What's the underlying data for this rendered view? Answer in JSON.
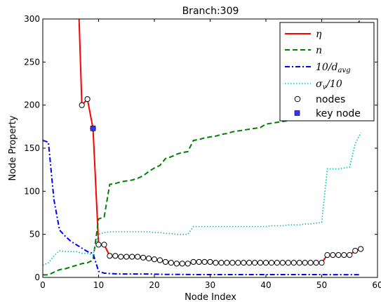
{
  "chart_data": {
    "type": "line",
    "title": "Branch:309",
    "xlabel": "Node Index",
    "ylabel": "Node Property",
    "xlim": [
      0,
      60
    ],
    "ylim": [
      0,
      300
    ],
    "xticks": [
      "0",
      "10",
      "20",
      "30",
      "40",
      "50",
      "60"
    ],
    "yticks": [
      "0",
      "50",
      "100",
      "150",
      "200",
      "250",
      "300"
    ],
    "grid": false,
    "legend_position": "top-right",
    "series": [
      {
        "name": "η",
        "style": "solid",
        "color": "#ff0000",
        "x": [
          7,
          8,
          9,
          10,
          11,
          12,
          13,
          14,
          15,
          16,
          17,
          18,
          19,
          20,
          21,
          22,
          23,
          24,
          25,
          26,
          27,
          28,
          29,
          30,
          31,
          32,
          33,
          34,
          35,
          36,
          37,
          38,
          39,
          40,
          41,
          42,
          43,
          44,
          45,
          46,
          47,
          48,
          49,
          50,
          51,
          52,
          53,
          54,
          55,
          56,
          57
        ],
        "y": [
          200,
          207,
          173,
          38,
          38,
          25,
          25,
          24,
          24,
          24,
          24,
          23,
          22,
          21,
          20,
          18,
          17,
          16,
          16,
          16,
          18,
          18,
          18,
          18,
          17,
          17,
          17,
          17,
          17,
          17,
          17,
          17,
          17,
          17,
          17,
          17,
          17,
          17,
          17,
          17,
          17,
          17,
          17,
          17,
          26,
          26,
          26,
          26,
          26,
          31,
          33
        ],
        "lead_in": {
          "x": [
            6.5,
            7
          ],
          "y": [
            300,
            200
          ]
        }
      },
      {
        "name": "n",
        "style": "dashed",
        "color": "#008000",
        "x": [
          0,
          1,
          2,
          3,
          4,
          5,
          6,
          7,
          8,
          9,
          10,
          11,
          12,
          13,
          14,
          15,
          16,
          17,
          18,
          19,
          20,
          21,
          22,
          23,
          24,
          25,
          26,
          27,
          28,
          29,
          30,
          31,
          32,
          33,
          34,
          35,
          36,
          37,
          38,
          39,
          40,
          41,
          42,
          43,
          44,
          45,
          46,
          47,
          48,
          49,
          50,
          51,
          52,
          53,
          54,
          55,
          56,
          57
        ],
        "y": [
          3,
          3,
          6,
          9,
          10,
          12,
          14,
          16,
          17,
          20,
          68,
          70,
          108,
          109,
          111,
          112,
          113,
          115,
          118,
          123,
          127,
          130,
          138,
          140,
          143,
          145,
          146,
          159,
          160,
          162,
          163,
          164,
          166,
          167,
          169,
          170,
          171,
          172,
          173,
          174,
          178,
          179,
          180,
          181,
          182,
          183,
          183,
          184,
          185,
          185,
          186,
          200,
          215,
          235,
          255,
          275,
          290,
          300
        ]
      },
      {
        "name": "10/d_avg",
        "style": "dashdot",
        "color": "#0000ff",
        "x": [
          0,
          1,
          2,
          3,
          4,
          5,
          6,
          7,
          8,
          9,
          10,
          11,
          12,
          13,
          14,
          15,
          16,
          17,
          18,
          19,
          20,
          21,
          22,
          23,
          24,
          25,
          26,
          27,
          28,
          29,
          30,
          31,
          32,
          33,
          34,
          35,
          36,
          37,
          38,
          39,
          40,
          41,
          42,
          43,
          44,
          45,
          46,
          47,
          48,
          49,
          50,
          51,
          52,
          53,
          54,
          55,
          56,
          57
        ],
        "y": [
          159,
          157,
          90,
          55,
          48,
          42,
          38,
          34,
          30,
          28,
          7,
          5,
          4.5,
          4.2,
          4,
          4,
          4,
          4,
          4,
          4,
          3.8,
          3.6,
          3.5,
          3.5,
          3.5,
          3.4,
          3.4,
          3.3,
          3.3,
          3.3,
          3.3,
          3.3,
          3.3,
          3.3,
          3.3,
          3.3,
          3.3,
          3.3,
          3.3,
          3.3,
          3.3,
          3.3,
          3.3,
          3.3,
          3.3,
          3.3,
          3.3,
          3.3,
          3.3,
          3.3,
          3.3,
          3.2,
          3.2,
          3.2,
          3.2,
          3.2,
          3.2,
          3.2
        ]
      },
      {
        "name": "σ_v/10",
        "style": "dotted",
        "color": "#00bfbf",
        "x": [
          0,
          1,
          2,
          3,
          4,
          5,
          6,
          7,
          8,
          9,
          10,
          11,
          12,
          13,
          14,
          15,
          16,
          17,
          18,
          19,
          20,
          21,
          22,
          23,
          24,
          25,
          26,
          27,
          28,
          29,
          30,
          31,
          32,
          33,
          34,
          35,
          36,
          37,
          38,
          39,
          40,
          41,
          42,
          43,
          44,
          45,
          46,
          47,
          48,
          49,
          50,
          51,
          52,
          53,
          54,
          55,
          56,
          57
        ],
        "y": [
          14,
          17,
          25,
          31,
          30,
          30,
          30,
          28,
          28,
          26,
          50,
          52,
          53,
          53,
          53,
          53,
          53,
          53,
          53,
          53,
          52,
          52,
          51,
          51,
          50,
          50,
          50,
          59,
          59,
          59,
          59,
          59,
          59,
          59,
          59,
          59,
          59,
          59,
          59,
          59,
          59,
          60,
          60,
          60,
          61,
          61,
          61,
          62,
          62,
          63,
          64,
          126,
          126,
          126,
          127,
          128,
          155,
          168
        ]
      }
    ],
    "nodes": {
      "name": "nodes",
      "x": [
        7,
        8,
        9,
        10,
        11,
        12,
        13,
        14,
        15,
        16,
        17,
        18,
        19,
        20,
        21,
        22,
        23,
        24,
        25,
        26,
        27,
        28,
        29,
        30,
        31,
        32,
        33,
        34,
        35,
        36,
        37,
        38,
        39,
        40,
        41,
        42,
        43,
        44,
        45,
        46,
        47,
        48,
        49,
        50,
        51,
        52,
        53,
        54,
        55,
        56,
        57
      ],
      "y": [
        200,
        207,
        173,
        38,
        38,
        25,
        25,
        24,
        24,
        24,
        24,
        23,
        22,
        21,
        20,
        18,
        17,
        16,
        16,
        16,
        18,
        18,
        18,
        18,
        17,
        17,
        17,
        17,
        17,
        17,
        17,
        17,
        17,
        17,
        17,
        17,
        17,
        17,
        17,
        17,
        17,
        17,
        17,
        17,
        26,
        26,
        26,
        26,
        26,
        31,
        33
      ]
    },
    "key_node": {
      "name": "key node",
      "x": 9,
      "y": 173,
      "color": "#3333ff"
    }
  }
}
